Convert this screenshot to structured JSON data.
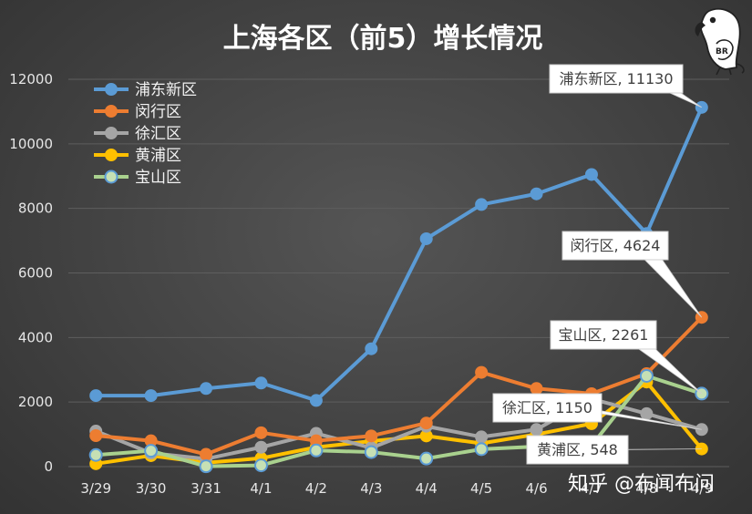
{
  "watermark": "知乎 @布闻布问",
  "logo_text": "BR",
  "chart_data": {
    "type": "line",
    "title": "上海各区（前5）增长情况",
    "xlabel": "",
    "ylabel": "",
    "categories": [
      "3/29",
      "3/30",
      "3/31",
      "4/1",
      "4/2",
      "4/3",
      "4/4",
      "4/5",
      "4/6",
      "4/7",
      "4/8",
      "4/9"
    ],
    "ylim": [
      0,
      12000
    ],
    "yticks": [
      0,
      2000,
      4000,
      6000,
      8000,
      10000,
      12000
    ],
    "grid": true,
    "legend_position": "top-left",
    "series": [
      {
        "name": "浦东新区",
        "color": "#5b9bd5",
        "values": [
          2200,
          2200,
          2420,
          2590,
          2050,
          3650,
          7060,
          8120,
          8450,
          9050,
          7220,
          11130
        ]
      },
      {
        "name": "闵行区",
        "color": "#ed7d31",
        "values": [
          960,
          800,
          380,
          1050,
          800,
          950,
          1350,
          2920,
          2420,
          2260,
          2880,
          4624
        ]
      },
      {
        "name": "徐汇区",
        "color": "#a5a5a5",
        "values": [
          1100,
          420,
          240,
          600,
          1030,
          580,
          1250,
          920,
          1150,
          2100,
          1640,
          1150
        ]
      },
      {
        "name": "黄浦区",
        "color": "#ffc000",
        "values": [
          90,
          340,
          120,
          260,
          600,
          790,
          950,
          720,
          1000,
          1330,
          2620,
          548
        ]
      },
      {
        "name": "宝山区",
        "color": "#a9d18e",
        "values": [
          360,
          490,
          10,
          40,
          500,
          450,
          250,
          540,
          620,
          650,
          2810,
          2261
        ]
      }
    ],
    "annotations": [
      {
        "series": 0,
        "label": "浦东新区, 11130"
      },
      {
        "series": 1,
        "label": "闵行区, 4624"
      },
      {
        "series": 4,
        "label": "宝山区, 2261"
      },
      {
        "series": 2,
        "label": "徐汇区, 1150"
      },
      {
        "series": 3,
        "label": "黄浦区, 548"
      }
    ]
  }
}
